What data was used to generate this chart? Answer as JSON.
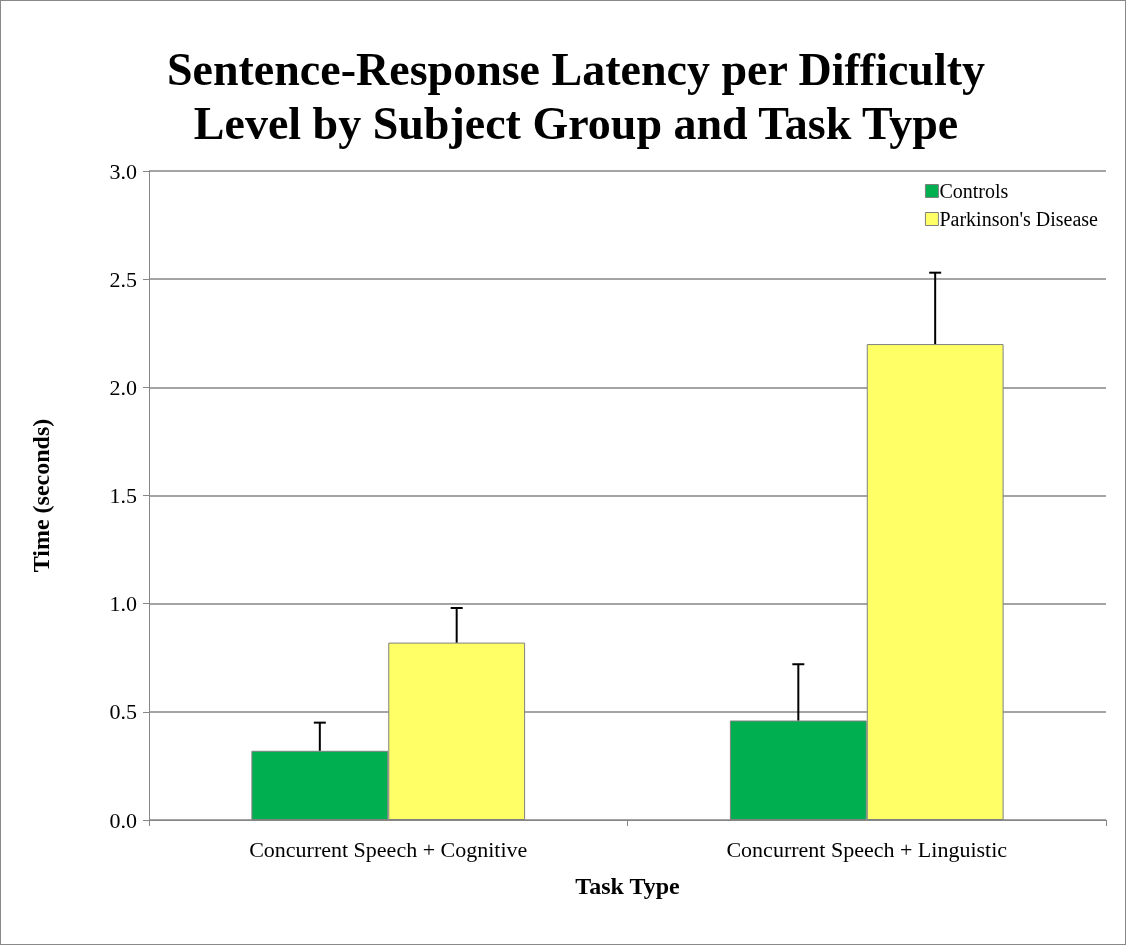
{
  "chart_data": {
    "type": "bar",
    "title": "Sentence-Response Latency per Difficulty\nLevel by Subject Group and Task Type",
    "xlabel": "Task Type",
    "ylabel": "Time (seconds)",
    "categories": [
      "Concurrent Speech + Cognitive",
      "Concurrent Speech + Linguistic"
    ],
    "series": [
      {
        "name": "Controls",
        "color": "#00b050",
        "values": [
          0.32,
          0.46
        ],
        "errors": [
          [
            0.32,
            0.45
          ],
          [
            0.46,
            0.72
          ]
        ]
      },
      {
        "name": "Parkinson's Disease",
        "color": "#ffff66",
        "values": [
          0.82,
          2.2
        ],
        "errors": [
          [
            0.82,
            0.98
          ],
          [
            2.2,
            2.53
          ]
        ]
      }
    ],
    "ylim": [
      0,
      3
    ],
    "yticks": [
      {
        "value": 0,
        "label": "0.0"
      },
      {
        "value": 0.5,
        "label": "0.5"
      },
      {
        "value": 1,
        "label": "1.0"
      },
      {
        "value": 1.5,
        "label": "1.5"
      },
      {
        "value": 2,
        "label": "2.0"
      },
      {
        "value": 2.5,
        "label": "2.5"
      },
      {
        "value": 3,
        "label": "3.0"
      }
    ],
    "grid": "y",
    "legend": "top right"
  }
}
